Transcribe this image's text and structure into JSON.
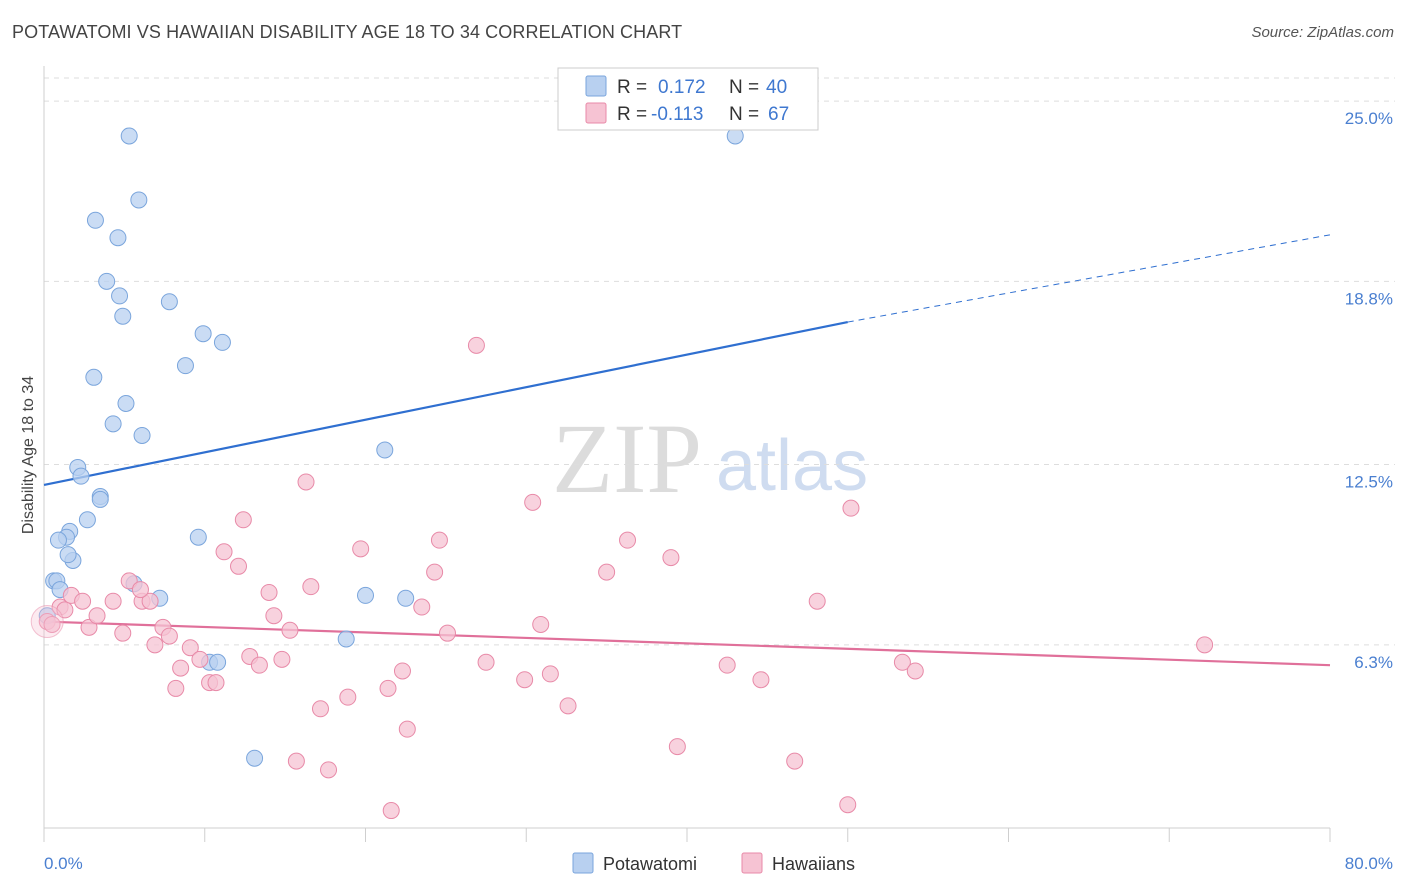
{
  "header": {
    "title": "POTAWATOMI VS HAWAIIAN DISABILITY AGE 18 TO 34 CORRELATION CHART",
    "source": "Source: ZipAtlas.com"
  },
  "watermark": {
    "zip": "ZIP",
    "atlas": "atlas"
  },
  "legend_top": {
    "rows": [
      {
        "r_label": "R =",
        "r_value": "0.172",
        "n_label": "N =",
        "n_value": "40"
      },
      {
        "r_label": "R =",
        "r_value": "-0.113",
        "n_label": "N =",
        "n_value": "67"
      }
    ]
  },
  "legend_bottom": {
    "items": [
      "Potawatomi",
      "Hawaiians"
    ]
  },
  "colors": {
    "blue_fill": "#b8d0f0",
    "blue_stroke": "#7aa5dc",
    "blue_line": "#2f6fd0",
    "pink_fill": "#f6c3d3",
    "pink_stroke": "#e88aa8",
    "pink_line": "#e0709a",
    "grid": "#dddddd",
    "axis_text": "#4a7fd0"
  },
  "chart_data": {
    "type": "scatter",
    "title": "POTAWATOMI VS HAWAIIAN DISABILITY AGE 18 TO 34 CORRELATION CHART",
    "xlabel": "",
    "ylabel": "Disability Age 18 to 34",
    "xlim": [
      0,
      80
    ],
    "ylim": [
      0,
      26
    ],
    "x_tick_labels": [
      "0.0%",
      "80.0%"
    ],
    "y_ticks": [
      6.3,
      12.5,
      18.8,
      25.0
    ],
    "y_tick_labels": [
      "6.3%",
      "12.5%",
      "18.8%",
      "25.0%"
    ],
    "grid": true,
    "legend_position": "top-center",
    "series": [
      {
        "name": "Potawatomi",
        "r": 0.172,
        "n": 40,
        "trend": {
          "x0": 0,
          "y0": 11.8,
          "x1": 50,
          "y1": 17.4,
          "dashed_to_x": 80,
          "dashed_to_y": 20.4
        },
        "points": [
          [
            5.3,
            23.8
          ],
          [
            5.9,
            21.6
          ],
          [
            3.2,
            20.9
          ],
          [
            4.6,
            20.3
          ],
          [
            3.9,
            18.8
          ],
          [
            4.7,
            18.3
          ],
          [
            7.8,
            18.1
          ],
          [
            4.9,
            17.6
          ],
          [
            9.9,
            17.0
          ],
          [
            11.1,
            16.7
          ],
          [
            8.8,
            15.9
          ],
          [
            3.1,
            15.5
          ],
          [
            5.1,
            14.6
          ],
          [
            4.3,
            13.9
          ],
          [
            6.1,
            13.5
          ],
          [
            21.2,
            13.0
          ],
          [
            2.1,
            12.4
          ],
          [
            2.3,
            12.1
          ],
          [
            3.5,
            11.4
          ],
          [
            3.5,
            11.3
          ],
          [
            2.7,
            10.6
          ],
          [
            1.6,
            10.2
          ],
          [
            1.4,
            10.0
          ],
          [
            0.9,
            9.9
          ],
          [
            9.6,
            10.0
          ],
          [
            1.8,
            9.2
          ],
          [
            1.5,
            9.4
          ],
          [
            0.6,
            8.5
          ],
          [
            0.8,
            8.5
          ],
          [
            5.6,
            8.4
          ],
          [
            1.0,
            8.2
          ],
          [
            7.2,
            7.9
          ],
          [
            22.5,
            7.9
          ],
          [
            0.2,
            7.3
          ],
          [
            18.8,
            6.5
          ],
          [
            10.3,
            5.7
          ],
          [
            10.8,
            5.7
          ],
          [
            13.1,
            2.4
          ],
          [
            43.0,
            23.8
          ],
          [
            20.0,
            8.0
          ]
        ]
      },
      {
        "name": "Hawaiians",
        "r": -0.113,
        "n": 67,
        "trend": {
          "x0": 0,
          "y0": 7.1,
          "x1": 80,
          "y1": 5.6
        },
        "points": [
          [
            0.2,
            7.1
          ],
          [
            1.0,
            7.6
          ],
          [
            1.3,
            7.5
          ],
          [
            1.7,
            8.0
          ],
          [
            2.4,
            7.8
          ],
          [
            2.8,
            6.9
          ],
          [
            3.3,
            7.3
          ],
          [
            4.3,
            7.8
          ],
          [
            4.9,
            6.7
          ],
          [
            5.3,
            8.5
          ],
          [
            6.1,
            7.8
          ],
          [
            6.6,
            7.8
          ],
          [
            6.9,
            6.3
          ],
          [
            7.4,
            6.9
          ],
          [
            7.8,
            6.6
          ],
          [
            8.2,
            4.8
          ],
          [
            8.5,
            5.5
          ],
          [
            9.1,
            6.2
          ],
          [
            9.7,
            5.8
          ],
          [
            10.3,
            5.0
          ],
          [
            10.7,
            5.0
          ],
          [
            11.2,
            9.5
          ],
          [
            12.1,
            9.0
          ],
          [
            12.4,
            10.6
          ],
          [
            12.8,
            5.9
          ],
          [
            13.4,
            5.6
          ],
          [
            14.0,
            8.1
          ],
          [
            14.3,
            7.3
          ],
          [
            14.8,
            5.8
          ],
          [
            15.3,
            6.8
          ],
          [
            15.7,
            2.3
          ],
          [
            16.3,
            11.9
          ],
          [
            16.6,
            8.3
          ],
          [
            17.2,
            4.1
          ],
          [
            17.7,
            2.0
          ],
          [
            18.9,
            4.5
          ],
          [
            19.7,
            9.6
          ],
          [
            21.4,
            4.8
          ],
          [
            21.6,
            0.6
          ],
          [
            22.3,
            5.4
          ],
          [
            22.6,
            3.4
          ],
          [
            23.5,
            7.6
          ],
          [
            24.3,
            8.8
          ],
          [
            24.6,
            9.9
          ],
          [
            25.1,
            6.7
          ],
          [
            26.9,
            16.6
          ],
          [
            27.5,
            5.7
          ],
          [
            29.9,
            5.1
          ],
          [
            30.4,
            11.2
          ],
          [
            30.9,
            7.0
          ],
          [
            31.5,
            5.3
          ],
          [
            32.6,
            4.2
          ],
          [
            35.0,
            8.8
          ],
          [
            36.3,
            9.9
          ],
          [
            39.0,
            9.3
          ],
          [
            39.4,
            2.8
          ],
          [
            42.5,
            5.6
          ],
          [
            44.6,
            5.1
          ],
          [
            46.7,
            2.3
          ],
          [
            48.1,
            7.8
          ],
          [
            50.0,
            0.8
          ],
          [
            50.2,
            11.0
          ],
          [
            53.4,
            5.7
          ],
          [
            54.2,
            5.4
          ],
          [
            72.2,
            6.3
          ],
          [
            0.5,
            7.0
          ],
          [
            6.0,
            8.2
          ]
        ]
      }
    ]
  }
}
